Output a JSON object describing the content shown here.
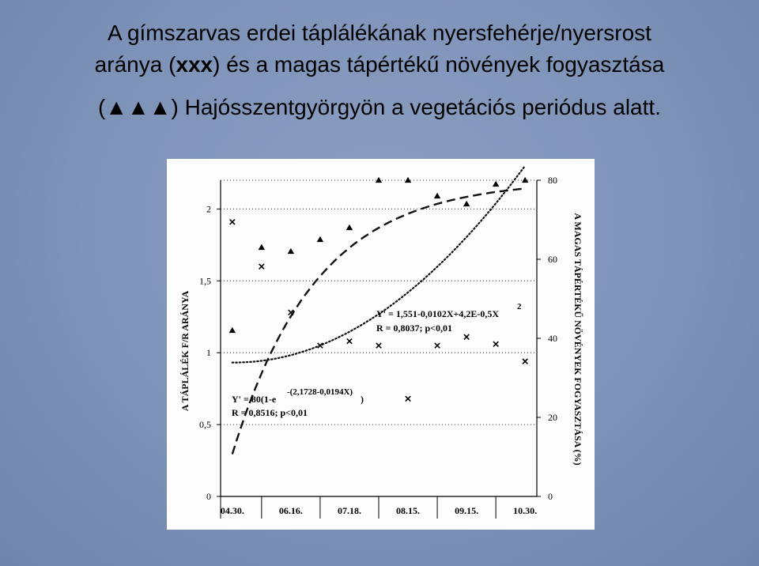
{
  "title": {
    "line1": "A gímszarvas  erdei táplálékának nyersfehérje/nyersrost",
    "line2_pre": "aránya (",
    "line2_marker": "xxx",
    "line2_post": ") és a magas tápértékű növények fogyasztása",
    "line3_pre": "(",
    "line3_marker": "▲▲▲",
    "line3_post": ") Hajósszentgyörgyön a vegetációs periódus alatt."
  },
  "chart_data": {
    "type": "scatter",
    "categories": [
      "04.30.",
      "06.16.",
      "07.18.",
      "08.15.",
      "09.15.",
      "10.30."
    ],
    "ylabel_left": "A TÁPLÁLÉK F/R ARÁNYA",
    "ylabel_right": "A MAGAS TÁPÉRTÉKŰ NÖVÉNYEK FOGYASZTÁSA (%)",
    "left_axis": {
      "min": 0,
      "max": 2.2,
      "ticks": [
        "0",
        "0,5",
        "1",
        "1,5",
        "2"
      ],
      "tick_values": [
        0,
        0.5,
        1,
        1.5,
        2
      ]
    },
    "right_axis": {
      "min": 0,
      "max": 80,
      "ticks": [
        "0",
        "20",
        "40",
        "60",
        "80"
      ],
      "tick_values": [
        0,
        20,
        40,
        60,
        80
      ]
    },
    "grid": "dotted horizontal",
    "series": [
      {
        "marker": "x",
        "axis": "left",
        "points": [
          {
            "x": 0.2,
            "y": 1.91
          },
          {
            "x": 1.2,
            "y": 1.6
          },
          {
            "x": 2.2,
            "y": 1.28
          },
          {
            "x": 3.2,
            "y": 1.05
          },
          {
            "x": 4.2,
            "y": 1.08
          },
          {
            "x": 5.2,
            "y": 1.05
          },
          {
            "x": 6.2,
            "y": 0.68
          },
          {
            "x": 7.2,
            "y": 1.05
          },
          {
            "x": 8.2,
            "y": 1.11
          },
          {
            "x": 9.2,
            "y": 1.06
          },
          {
            "x": 10.2,
            "y": 0.94
          }
        ]
      },
      {
        "marker": "triangle",
        "axis": "right",
        "points": [
          {
            "x": 0.2,
            "y": 42
          },
          {
            "x": 1.2,
            "y": 63
          },
          {
            "x": 2.2,
            "y": 62
          },
          {
            "x": 3.2,
            "y": 65
          },
          {
            "x": 4.2,
            "y": 68
          },
          {
            "x": 5.2,
            "y": 80
          },
          {
            "x": 6.2,
            "y": 80
          },
          {
            "x": 7.2,
            "y": 76
          },
          {
            "x": 8.2,
            "y": 74
          },
          {
            "x": 9.2,
            "y": 79
          },
          {
            "x": 10.2,
            "y": 80
          }
        ]
      }
    ],
    "fits": [
      {
        "style": "dotted",
        "axis": "left",
        "equation": "Y' = 1,551-0,0102X+4,2E-0,5X",
        "superscript": "2",
        "stats": "R  = 0,8037; p<0,01"
      },
      {
        "style": "dashed",
        "axis": "right",
        "equation_prefix": "Y' = 80(1-e",
        "superscript": "-(2,1728-0,0194X)",
        "equation_suffix": ")",
        "stats": "R  = 0,8516; p<0,01"
      }
    ]
  }
}
